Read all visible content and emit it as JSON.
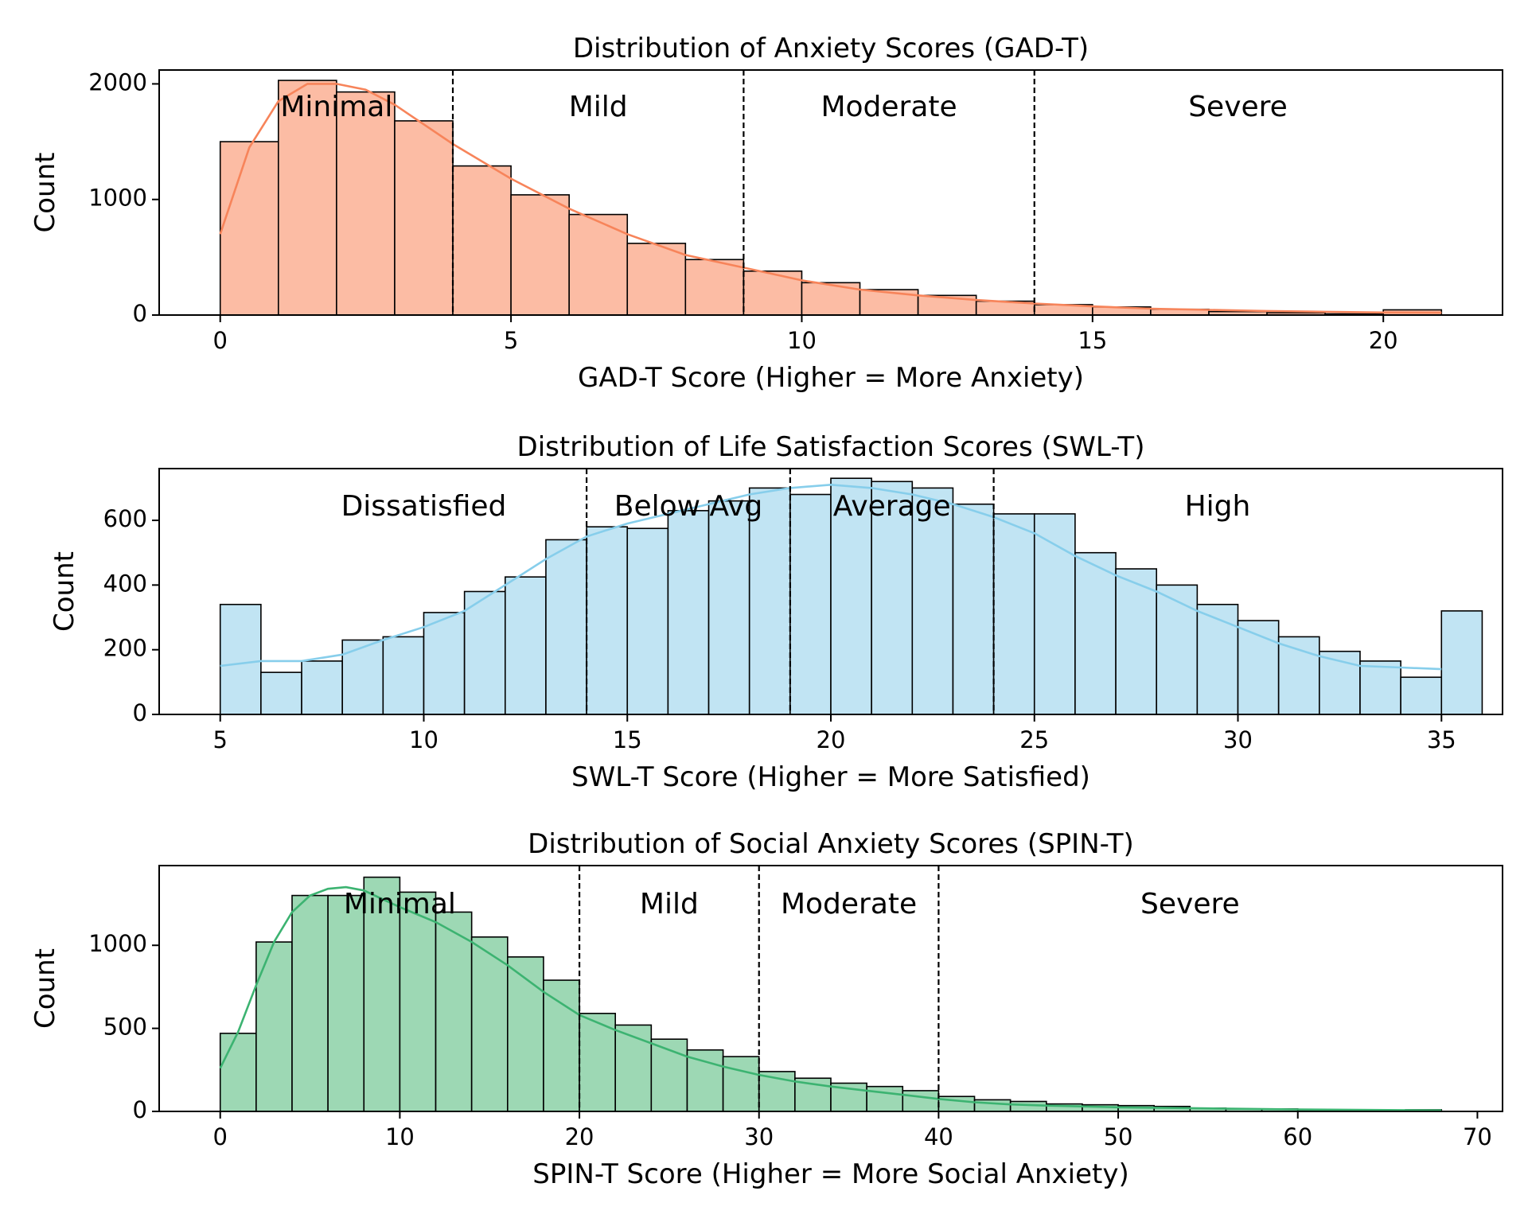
{
  "chart_data": [
    {
      "type": "bar",
      "title": "Distribution of Anxiety Scores (GAD-T)",
      "xlabel": "GAD-T Score (Higher = More Anxiety)",
      "ylabel": "Count",
      "xlim": [
        -1.05,
        22.05
      ],
      "ylim": [
        0,
        2120
      ],
      "xticks": [
        0,
        5,
        10,
        15,
        20
      ],
      "yticks": [
        0,
        1000,
        2000
      ],
      "bin_edges": [
        0,
        1,
        2,
        3,
        4,
        5,
        6,
        7,
        8,
        9,
        10,
        11,
        12,
        13,
        14,
        15,
        16,
        17,
        18,
        19,
        20,
        21
      ],
      "values": [
        1500,
        2030,
        1930,
        1680,
        1290,
        1040,
        870,
        620,
        480,
        380,
        280,
        220,
        170,
        120,
        90,
        70,
        50,
        30,
        20,
        10,
        45
      ],
      "kde": [
        [
          0,
          700
        ],
        [
          0.5,
          1450
        ],
        [
          1,
          1850
        ],
        [
          1.5,
          2000
        ],
        [
          2,
          2000
        ],
        [
          2.5,
          1950
        ],
        [
          3,
          1820
        ],
        [
          3.5,
          1650
        ],
        [
          4,
          1480
        ],
        [
          5,
          1180
        ],
        [
          6,
          920
        ],
        [
          7,
          700
        ],
        [
          8,
          520
        ],
        [
          9,
          410
        ],
        [
          10,
          300
        ],
        [
          11,
          220
        ],
        [
          12,
          170
        ],
        [
          13,
          130
        ],
        [
          14,
          100
        ],
        [
          15,
          75
        ],
        [
          16,
          55
        ],
        [
          17,
          45
        ],
        [
          18,
          35
        ],
        [
          19,
          28
        ],
        [
          20,
          22
        ],
        [
          21,
          20
        ]
      ],
      "bar_color": "#fcbca4",
      "line_color": "#f7845a",
      "thresholds": [
        4,
        9,
        14
      ],
      "regions": [
        {
          "label": "Minimal",
          "x": 2
        },
        {
          "label": "Mild",
          "x": 6.5
        },
        {
          "label": "Moderate",
          "x": 11.5
        },
        {
          "label": "Severe",
          "x": 17.5
        }
      ],
      "region_label_y": 1790
    },
    {
      "type": "bar",
      "title": "Distribution of Life Satisfaction Scores (SWL-T)",
      "xlabel": "SWL-T Score (Higher = More Satisfied)",
      "ylabel": "Count",
      "xlim": [
        3.5,
        36.5
      ],
      "ylim": [
        0,
        760
      ],
      "xticks": [
        5,
        10,
        15,
        20,
        25,
        30,
        35
      ],
      "yticks": [
        0,
        200,
        400,
        600
      ],
      "bin_edges": [
        5,
        6,
        7,
        8,
        9,
        10,
        11,
        12,
        13,
        14,
        15,
        16,
        17,
        18,
        19,
        20,
        21,
        22,
        23,
        24,
        25,
        26,
        27,
        28,
        29,
        30,
        31,
        32,
        33,
        34,
        35
      ],
      "values": [
        340,
        130,
        165,
        230,
        240,
        315,
        380,
        425,
        540,
        580,
        575,
        630,
        660,
        700,
        680,
        730,
        720,
        700,
        650,
        620,
        620,
        500,
        450,
        400,
        340,
        290,
        240,
        195,
        165,
        115,
        320
      ],
      "kde": [
        [
          5,
          150
        ],
        [
          6,
          165
        ],
        [
          7,
          165
        ],
        [
          8,
          185
        ],
        [
          9,
          230
        ],
        [
          10,
          270
        ],
        [
          11,
          320
        ],
        [
          12,
          400
        ],
        [
          13,
          480
        ],
        [
          14,
          550
        ],
        [
          15,
          590
        ],
        [
          16,
          620
        ],
        [
          17,
          650
        ],
        [
          18,
          680
        ],
        [
          19,
          700
        ],
        [
          20,
          710
        ],
        [
          21,
          700
        ],
        [
          22,
          680
        ],
        [
          23,
          650
        ],
        [
          24,
          610
        ],
        [
          25,
          560
        ],
        [
          26,
          490
        ],
        [
          27,
          430
        ],
        [
          28,
          380
        ],
        [
          29,
          320
        ],
        [
          30,
          270
        ],
        [
          31,
          220
        ],
        [
          32,
          180
        ],
        [
          33,
          150
        ],
        [
          34,
          145
        ],
        [
          35,
          140
        ]
      ],
      "bar_color": "#c1e4f3",
      "line_color": "#87ceeb",
      "thresholds": [
        14,
        19,
        24
      ],
      "regions": [
        {
          "label": "Dissatisfied",
          "x": 10
        },
        {
          "label": "Below Avg",
          "x": 16.5
        },
        {
          "label": "Average",
          "x": 21.5
        },
        {
          "label": "High",
          "x": 29.5
        }
      ],
      "region_label_y": 640
    },
    {
      "type": "bar",
      "title": "Distribution of Social Anxiety Scores (SPIN-T)",
      "xlabel": "SPIN-T Score (Higher = More Social Anxiety)",
      "ylabel": "Count",
      "xlim": [
        -3.4,
        71.4
      ],
      "ylim": [
        0,
        1480
      ],
      "xticks": [
        0,
        10,
        20,
        30,
        40,
        50,
        60,
        70
      ],
      "yticks": [
        0,
        500,
        1000
      ],
      "bin_edges": [
        0,
        2,
        4,
        6,
        8,
        10,
        12,
        14,
        16,
        18,
        20,
        22,
        24,
        26,
        28,
        30,
        32,
        34,
        36,
        38,
        40,
        42,
        44,
        46,
        48,
        50,
        52,
        54,
        56,
        58,
        60,
        62,
        64,
        66,
        68
      ],
      "values": [
        470,
        1020,
        1300,
        1300,
        1410,
        1320,
        1200,
        1050,
        930,
        790,
        590,
        520,
        435,
        370,
        330,
        240,
        200,
        170,
        150,
        125,
        90,
        70,
        60,
        45,
        40,
        35,
        30,
        20,
        15,
        15,
        10,
        5,
        5,
        10
      ],
      "kde": [
        [
          0,
          260
        ],
        [
          1,
          480
        ],
        [
          2,
          760
        ],
        [
          3,
          1020
        ],
        [
          4,
          1200
        ],
        [
          5,
          1300
        ],
        [
          6,
          1340
        ],
        [
          7,
          1350
        ],
        [
          8,
          1330
        ],
        [
          9,
          1280
        ],
        [
          10,
          1230
        ],
        [
          12,
          1140
        ],
        [
          14,
          1020
        ],
        [
          16,
          880
        ],
        [
          18,
          720
        ],
        [
          20,
          580
        ],
        [
          22,
          490
        ],
        [
          24,
          410
        ],
        [
          26,
          330
        ],
        [
          28,
          270
        ],
        [
          30,
          220
        ],
        [
          32,
          180
        ],
        [
          34,
          150
        ],
        [
          36,
          125
        ],
        [
          38,
          100
        ],
        [
          40,
          75
        ],
        [
          42,
          55
        ],
        [
          44,
          42
        ],
        [
          46,
          35
        ],
        [
          48,
          30
        ],
        [
          50,
          25
        ],
        [
          55,
          18
        ],
        [
          60,
          12
        ],
        [
          65,
          8
        ],
        [
          68,
          6
        ]
      ],
      "bar_color": "#9dd8b4",
      "line_color": "#3cb371",
      "thresholds": [
        20,
        30,
        40
      ],
      "regions": [
        {
          "label": "Minimal",
          "x": 10
        },
        {
          "label": "Mild",
          "x": 25
        },
        {
          "label": "Moderate",
          "x": 35
        },
        {
          "label": "Severe",
          "x": 54
        }
      ],
      "region_label_y": 1240
    }
  ]
}
